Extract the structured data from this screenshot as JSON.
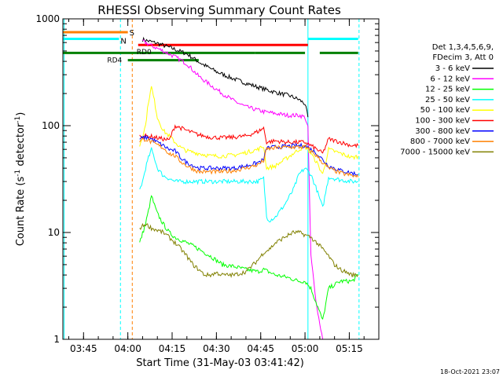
{
  "chart_data": {
    "type": "line",
    "title": "RHESSI Observing Summary Count Rates",
    "xlabel": "Start Time (31-May-03 03:41:42)",
    "ylabel_main": "Count Rate (s",
    "ylabel_sup1": "-1",
    "ylabel_mid": " detector",
    "ylabel_sup2": "-1",
    "ylabel_end": ")",
    "footer": "18-Oct-2021 23:07",
    "yscale": "log",
    "ylim": [
      1,
      1000
    ],
    "xlim_minutes": [
      218.0,
      325.0
    ],
    "y_ticks": [
      {
        "v": 1,
        "label": "1"
      },
      {
        "v": 10,
        "label": "10"
      },
      {
        "v": 100,
        "label": "100"
      },
      {
        "v": 1000,
        "label": "1000"
      }
    ],
    "x_ticks": [
      {
        "t": 225,
        "label": "03:45"
      },
      {
        "t": 240,
        "label": "04:00"
      },
      {
        "t": 255,
        "label": "04:15"
      },
      {
        "t": 270,
        "label": "04:30"
      },
      {
        "t": 285,
        "label": "04:45"
      },
      {
        "t": 300,
        "label": "05:00"
      },
      {
        "t": 315,
        "label": "05:15"
      }
    ],
    "legend_header": [
      "Det 1,3,4,5,6,9,",
      "FDecim 3, Att 0"
    ],
    "series": [
      {
        "name": "3 - 6 keV",
        "color": "#000000",
        "pts": [
          [
            245,
            640
          ],
          [
            250,
            590
          ],
          [
            255,
            530
          ],
          [
            260,
            470
          ],
          [
            265,
            380
          ],
          [
            270,
            320
          ],
          [
            275,
            280
          ],
          [
            280,
            250
          ],
          [
            285,
            225
          ],
          [
            290,
            205
          ],
          [
            295,
            190
          ],
          [
            298,
            175
          ],
          [
            300,
            160
          ],
          [
            301,
            120
          ]
        ]
      },
      {
        "name": "6 - 12 keV",
        "color": "#ff00ff",
        "pts": [
          [
            245,
            620
          ],
          [
            248,
            560
          ],
          [
            252,
            500
          ],
          [
            256,
            440
          ],
          [
            260,
            380
          ],
          [
            264,
            290
          ],
          [
            268,
            240
          ],
          [
            272,
            200
          ],
          [
            276,
            170
          ],
          [
            280,
            150
          ],
          [
            284,
            140
          ],
          [
            286,
            135
          ],
          [
            290,
            130
          ],
          [
            294,
            125
          ],
          [
            298,
            125
          ],
          [
            300,
            120
          ],
          [
            301,
            95
          ],
          [
            302,
            6
          ],
          [
            304,
            2
          ],
          [
            306,
            1
          ]
        ]
      },
      {
        "name": "12 - 25 keV",
        "color": "#00ff00",
        "pts": [
          [
            244,
            8
          ],
          [
            246,
            12
          ],
          [
            247,
            16
          ],
          [
            248,
            22
          ],
          [
            249,
            18
          ],
          [
            250,
            15
          ],
          [
            252,
            12
          ],
          [
            254,
            10
          ],
          [
            256,
            9
          ],
          [
            258,
            8.5
          ],
          [
            260,
            8
          ],
          [
            264,
            7
          ],
          [
            268,
            6
          ],
          [
            272,
            5
          ],
          [
            276,
            4.8
          ],
          [
            280,
            4.5
          ],
          [
            284,
            4.3
          ],
          [
            286,
            4.5
          ],
          [
            290,
            4
          ],
          [
            294,
            3.8
          ],
          [
            298,
            3.5
          ],
          [
            300,
            3.5
          ],
          [
            302,
            3
          ],
          [
            306,
            1.5
          ],
          [
            308,
            3
          ],
          [
            312,
            3.5
          ],
          [
            316,
            3.5
          ],
          [
            318,
            4
          ]
        ]
      },
      {
        "name": "25 - 50 keV",
        "color": "#00ffff",
        "pts": [
          [
            244,
            25
          ],
          [
            245,
            30
          ],
          [
            246,
            40
          ],
          [
            247,
            50
          ],
          [
            248,
            60
          ],
          [
            249,
            50
          ],
          [
            250,
            40
          ],
          [
            252,
            34
          ],
          [
            254,
            32
          ],
          [
            256,
            30
          ],
          [
            258,
            30
          ],
          [
            260,
            30
          ],
          [
            264,
            30
          ],
          [
            268,
            30
          ],
          [
            272,
            30
          ],
          [
            276,
            30
          ],
          [
            280,
            30
          ],
          [
            284,
            30
          ],
          [
            286,
            32
          ],
          [
            287,
            14
          ],
          [
            288,
            13
          ],
          [
            290,
            14
          ],
          [
            293,
            18
          ],
          [
            296,
            25
          ],
          [
            298,
            35
          ],
          [
            300,
            40
          ],
          [
            302,
            35
          ],
          [
            304,
            25
          ],
          [
            306,
            17
          ],
          [
            308,
            33
          ],
          [
            310,
            32
          ],
          [
            312,
            31
          ],
          [
            316,
            30
          ],
          [
            318,
            30
          ]
        ]
      },
      {
        "name": "50 - 100 keV",
        "color": "#ffff00",
        "pts": [
          [
            244,
            65
          ],
          [
            246,
            100
          ],
          [
            247,
            170
          ],
          [
            248,
            230
          ],
          [
            249,
            170
          ],
          [
            250,
            120
          ],
          [
            252,
            90
          ],
          [
            254,
            80
          ],
          [
            256,
            70
          ],
          [
            258,
            62
          ],
          [
            260,
            58
          ],
          [
            264,
            55
          ],
          [
            268,
            52
          ],
          [
            272,
            52
          ],
          [
            276,
            53
          ],
          [
            280,
            56
          ],
          [
            284,
            60
          ],
          [
            286,
            64
          ],
          [
            287,
            40
          ],
          [
            290,
            42
          ],
          [
            294,
            50
          ],
          [
            298,
            60
          ],
          [
            300,
            64
          ],
          [
            302,
            55
          ],
          [
            304,
            45
          ],
          [
            306,
            35
          ],
          [
            308,
            60
          ],
          [
            312,
            55
          ],
          [
            316,
            50
          ],
          [
            318,
            52
          ]
        ]
      },
      {
        "name": "100 - 300 keV",
        "color": "#ff0000",
        "pts": [
          [
            244,
            80
          ],
          [
            246,
            80
          ],
          [
            248,
            79
          ],
          [
            250,
            77
          ],
          [
            252,
            75
          ],
          [
            254,
            73
          ],
          [
            256,
            100
          ],
          [
            258,
            95
          ],
          [
            260,
            90
          ],
          [
            264,
            82
          ],
          [
            268,
            78
          ],
          [
            272,
            77
          ],
          [
            276,
            78
          ],
          [
            280,
            80
          ],
          [
            284,
            88
          ],
          [
            286,
            95
          ],
          [
            287,
            70
          ],
          [
            290,
            72
          ],
          [
            294,
            70
          ],
          [
            298,
            70
          ],
          [
            300,
            70
          ],
          [
            302,
            65
          ],
          [
            304,
            60
          ],
          [
            306,
            55
          ],
          [
            308,
            75
          ],
          [
            312,
            70
          ],
          [
            316,
            65
          ],
          [
            318,
            65
          ]
        ]
      },
      {
        "name": "300 - 800 keV",
        "color": "#0000ff",
        "pts": [
          [
            244,
            75
          ],
          [
            246,
            78
          ],
          [
            248,
            75
          ],
          [
            250,
            70
          ],
          [
            252,
            65
          ],
          [
            254,
            60
          ],
          [
            256,
            58
          ],
          [
            258,
            50
          ],
          [
            260,
            45
          ],
          [
            264,
            40
          ],
          [
            268,
            40
          ],
          [
            272,
            40
          ],
          [
            276,
            40
          ],
          [
            280,
            42
          ],
          [
            284,
            45
          ],
          [
            286,
            48
          ],
          [
            287,
            62
          ],
          [
            290,
            63
          ],
          [
            294,
            64
          ],
          [
            298,
            65
          ],
          [
            300,
            65
          ],
          [
            302,
            60
          ],
          [
            304,
            55
          ],
          [
            306,
            48
          ],
          [
            308,
            42
          ],
          [
            312,
            38
          ],
          [
            316,
            36
          ],
          [
            318,
            35
          ]
        ]
      },
      {
        "name": "800 - 7000 keV",
        "color": "#ff8000",
        "pts": [
          [
            244,
            72
          ],
          [
            246,
            75
          ],
          [
            248,
            70
          ],
          [
            250,
            66
          ],
          [
            252,
            62
          ],
          [
            254,
            55
          ],
          [
            256,
            52
          ],
          [
            258,
            46
          ],
          [
            260,
            42
          ],
          [
            264,
            37
          ],
          [
            268,
            37
          ],
          [
            272,
            37
          ],
          [
            276,
            38
          ],
          [
            280,
            40
          ],
          [
            284,
            43
          ],
          [
            286,
            47
          ],
          [
            287,
            60
          ],
          [
            290,
            62
          ],
          [
            294,
            63
          ],
          [
            298,
            63
          ],
          [
            300,
            63
          ],
          [
            302,
            58
          ],
          [
            304,
            52
          ],
          [
            306,
            45
          ],
          [
            308,
            40
          ],
          [
            312,
            36
          ],
          [
            316,
            34
          ],
          [
            318,
            33
          ]
        ]
      },
      {
        "name": "7000 - 15000 keV",
        "color": "#808000",
        "pts": [
          [
            244,
            11
          ],
          [
            246,
            12
          ],
          [
            248,
            11
          ],
          [
            250,
            10.5
          ],
          [
            252,
            10
          ],
          [
            254,
            9
          ],
          [
            256,
            8
          ],
          [
            258,
            7
          ],
          [
            260,
            6
          ],
          [
            262,
            5
          ],
          [
            264,
            4.5
          ],
          [
            266,
            4
          ],
          [
            268,
            4
          ],
          [
            270,
            4.2
          ],
          [
            272,
            4
          ],
          [
            276,
            4
          ],
          [
            280,
            4.3
          ],
          [
            284,
            5.5
          ],
          [
            286,
            6.5
          ],
          [
            288,
            7
          ],
          [
            290,
            8
          ],
          [
            293,
            9
          ],
          [
            296,
            10
          ],
          [
            298,
            10
          ],
          [
            300,
            9.5
          ],
          [
            302,
            9
          ],
          [
            304,
            8
          ],
          [
            306,
            7
          ],
          [
            308,
            6
          ],
          [
            310,
            5
          ],
          [
            312,
            4.5
          ],
          [
            316,
            4
          ],
          [
            318,
            4
          ]
        ]
      }
    ],
    "flag_bars": [
      {
        "label": "S",
        "color": "#ff8000",
        "level": 750,
        "segments": [
          [
            218,
            240
          ]
        ]
      },
      {
        "label": "N",
        "color": "#00ffff",
        "level": 650,
        "segments": [
          [
            218,
            237
          ],
          [
            301,
            318
          ]
        ]
      },
      {
        "label": "RD0",
        "color": "#ff0000",
        "level": 570,
        "segments": [
          [
            243.5,
            301
          ]
        ]
      },
      {
        "label": "RD4",
        "color": "#008000",
        "level": 480,
        "segments": [
          [
            218,
            283
          ],
          [
            283,
            300
          ],
          [
            305,
            318
          ]
        ]
      }
    ],
    "flag_extra": [
      {
        "color": "#008000",
        "level": 410,
        "segments": [
          [
            240,
            264
          ]
        ]
      }
    ],
    "vlines": [
      {
        "t": 218.4,
        "color": "#00ffff",
        "style": "solid"
      },
      {
        "t": 237.5,
        "color": "#00ffff",
        "style": "dashed"
      },
      {
        "t": 241.5,
        "color": "#ff8000",
        "style": "dashed"
      },
      {
        "t": 301.0,
        "color": "#00ffff",
        "style": "solid"
      },
      {
        "t": 318.3,
        "color": "#00ffff",
        "style": "dashed"
      }
    ]
  }
}
